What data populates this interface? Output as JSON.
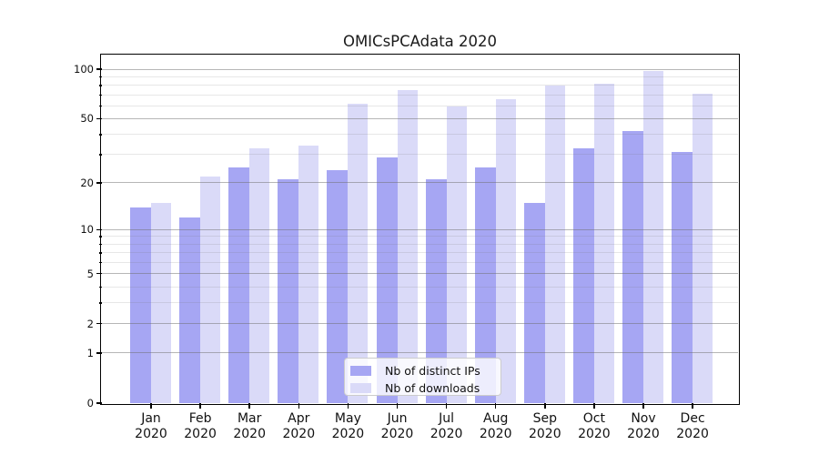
{
  "chart_data": {
    "type": "bar",
    "title": "OMICsPCAdata 2020",
    "categories": [
      "Jan 2020",
      "Feb 2020",
      "Mar 2020",
      "Apr 2020",
      "May 2020",
      "Jun 2020",
      "Jul 2020",
      "Aug 2020",
      "Sep 2020",
      "Oct 2020",
      "Nov 2020",
      "Dec 2020"
    ],
    "series": [
      {
        "name": "Nb of distinct IPs",
        "color": "#a6a6f3",
        "values": [
          14,
          12,
          25,
          21,
          24,
          29,
          21,
          25,
          15,
          33,
          42,
          31
        ]
      },
      {
        "name": "Nb of downloads",
        "color": "#dadaf8",
        "values": [
          15,
          22,
          33,
          34,
          62,
          75,
          59,
          66,
          80,
          82,
          98,
          71
        ]
      }
    ],
    "xlabel": "",
    "ylabel": "",
    "yscale": "log10(value+1)",
    "ylim": [
      0,
      121
    ],
    "yticks": [
      0,
      1,
      2,
      5,
      10,
      20,
      50,
      100
    ],
    "yticks_minor": [
      3,
      4,
      6,
      7,
      8,
      9,
      30,
      40,
      60,
      70,
      80,
      90
    ],
    "grid": "horizontal",
    "legend_position": "bottom-center",
    "colors": {
      "background": "#ffffff",
      "spine": "#000000",
      "grid_major": "#b2b2b2",
      "grid_minor": "#e9e9e9",
      "text": "#111111",
      "legend_border": "#cccccc"
    }
  }
}
